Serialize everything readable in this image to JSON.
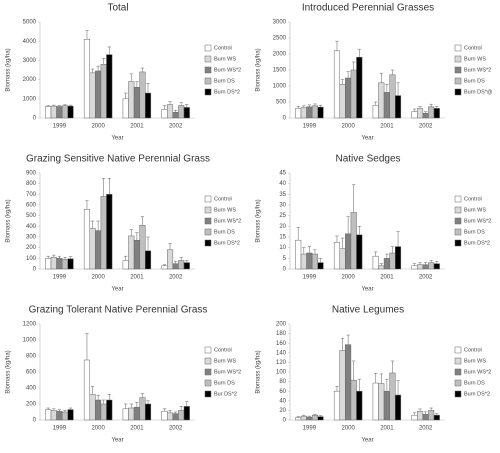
{
  "chart_data": [
    {
      "type": "bar",
      "title": "Total",
      "x_label": "Year",
      "y_label": "Biomass (kg/ha)",
      "categories": [
        "1999",
        "2000",
        "2001",
        "2002"
      ],
      "ylim": [
        0,
        5000
      ],
      "yticks": [
        0,
        1000,
        2000,
        3000,
        4000,
        5000
      ],
      "series": [
        {
          "name": "Control",
          "color": "#ffffff",
          "values": [
            600,
            4100,
            1000,
            450
          ],
          "errors": [
            50,
            450,
            300,
            200
          ]
        },
        {
          "name": "Burn WS",
          "color": "#d9d9d9",
          "values": [
            620,
            2350,
            1900,
            700
          ],
          "errors": [
            50,
            200,
            400,
            150
          ]
        },
        {
          "name": "Burn WS*2",
          "color": "#808080",
          "values": [
            600,
            2450,
            1600,
            300
          ],
          "errors": [
            50,
            250,
            300,
            100
          ]
        },
        {
          "name": "Burn DS",
          "color": "#bfbfbf",
          "values": [
            640,
            2800,
            2400,
            650
          ],
          "errors": [
            50,
            300,
            200,
            150
          ]
        },
        {
          "name": "Burn DS*2",
          "color": "#000000",
          "values": [
            620,
            3300,
            1300,
            550
          ],
          "errors": [
            50,
            400,
            500,
            150
          ]
        }
      ]
    },
    {
      "type": "bar",
      "title": "Introduced Perennial Grasses",
      "x_label": "Year",
      "y_label": "Biomass (kg/ha)",
      "categories": [
        "1999",
        "2000",
        "2001",
        "2002"
      ],
      "ylim": [
        0,
        3000
      ],
      "yticks": [
        0,
        500,
        1000,
        1500,
        2000,
        2500,
        3000
      ],
      "series": [
        {
          "name": "Control",
          "color": "#ffffff",
          "values": [
            300,
            2100,
            400,
            200
          ],
          "errors": [
            60,
            300,
            100,
            80
          ]
        },
        {
          "name": "Burn WS",
          "color": "#d9d9d9",
          "values": [
            320,
            1050,
            1100,
            300
          ],
          "errors": [
            60,
            150,
            300,
            60
          ]
        },
        {
          "name": "Burn WS*2",
          "color": "#808080",
          "values": [
            350,
            1250,
            800,
            150
          ],
          "errors": [
            60,
            200,
            250,
            50
          ]
        },
        {
          "name": "Burn DS",
          "color": "#bfbfbf",
          "values": [
            380,
            1500,
            1350,
            350
          ],
          "errors": [
            60,
            250,
            150,
            80
          ]
        },
        {
          "name": "Burn DS*@",
          "color": "#000000",
          "values": [
            340,
            1900,
            700,
            300
          ],
          "errors": [
            60,
            250,
            400,
            60
          ]
        }
      ]
    },
    {
      "type": "bar",
      "title": "Grazing Sensitive Native Perennial Grass",
      "x_label": "Year",
      "y_label": "Biomass (kg/ha)",
      "categories": [
        "1999",
        "2000",
        "2001",
        "2002"
      ],
      "ylim": [
        0,
        900
      ],
      "yticks": [
        0,
        100,
        200,
        300,
        400,
        500,
        600,
        700,
        800,
        900
      ],
      "series": [
        {
          "name": "Control",
          "color": "#ffffff",
          "values": [
            100,
            560,
            80,
            30
          ],
          "errors": [
            20,
            80,
            40,
            10
          ]
        },
        {
          "name": "Burn WS",
          "color": "#d9d9d9",
          "values": [
            110,
            380,
            310,
            180
          ],
          "errors": [
            20,
            70,
            60,
            60
          ]
        },
        {
          "name": "Burn WS*2",
          "color": "#808080",
          "values": [
            100,
            360,
            270,
            50
          ],
          "errors": [
            20,
            90,
            70,
            20
          ]
        },
        {
          "name": "Burn DS",
          "color": "#bfbfbf",
          "values": [
            90,
            680,
            410,
            80
          ],
          "errors": [
            20,
            170,
            80,
            30
          ]
        },
        {
          "name": "Burn DS*2",
          "color": "#000000",
          "values": [
            95,
            700,
            170,
            60
          ],
          "errors": [
            20,
            150,
            130,
            20
          ]
        }
      ]
    },
    {
      "type": "bar",
      "title": "Native Sedges",
      "x_label": "Year",
      "y_label": "Biomass (kg/ha)",
      "categories": [
        "1999",
        "2000",
        "2001",
        "2002"
      ],
      "ylim": [
        0,
        45
      ],
      "yticks": [
        0,
        5,
        10,
        15,
        20,
        25,
        30,
        35,
        40,
        45
      ],
      "series": [
        {
          "name": "Control",
          "color": "#ffffff",
          "values": [
            13.5,
            12.5,
            6,
            1.5
          ],
          "errors": [
            6,
            3,
            2,
            1
          ]
        },
        {
          "name": "Burn WS",
          "color": "#d9d9d9",
          "values": [
            7,
            9.5,
            1.5,
            2
          ],
          "errors": [
            3,
            5,
            1,
            1
          ]
        },
        {
          "name": "Burn WS*2",
          "color": "#808080",
          "values": [
            7.5,
            16.5,
            5,
            2
          ],
          "errors": [
            3,
            8,
            2,
            1
          ]
        },
        {
          "name": "Burn DS",
          "color": "#bfbfbf",
          "values": [
            7,
            26.5,
            7.5,
            3
          ],
          "errors": [
            2,
            13,
            3,
            1
          ]
        },
        {
          "name": "Burn DS*2",
          "color": "#000000",
          "values": [
            3,
            16,
            10.5,
            2.5
          ],
          "errors": [
            2,
            4,
            7,
            1
          ]
        }
      ]
    },
    {
      "type": "bar",
      "title": "Grazing Tolerant Native Perennial Grass",
      "x_label": "Year",
      "y_label": "Biomass (kg/ha)",
      "categories": [
        "1999",
        "2000",
        "2001",
        "2002"
      ],
      "ylim": [
        0,
        1200
      ],
      "yticks": [
        0,
        200,
        400,
        600,
        800,
        1000,
        1200
      ],
      "series": [
        {
          "name": "Control",
          "color": "#ffffff",
          "values": [
            130,
            750,
            140,
            110
          ],
          "errors": [
            20,
            330,
            60,
            30
          ]
        },
        {
          "name": "Burn WS",
          "color": "#d9d9d9",
          "values": [
            120,
            320,
            150,
            90
          ],
          "errors": [
            20,
            100,
            50,
            30
          ]
        },
        {
          "name": "Burn WS*2",
          "color": "#808080",
          "values": [
            110,
            250,
            160,
            80
          ],
          "errors": [
            20,
            60,
            60,
            20
          ]
        },
        {
          "name": "Burn DS",
          "color": "#bfbfbf",
          "values": [
            100,
            200,
            280,
            120
          ],
          "errors": [
            20,
            50,
            50,
            50
          ]
        },
        {
          "name": "Bur DS*2",
          "color": "#000000",
          "values": [
            130,
            250,
            200,
            170
          ],
          "errors": [
            20,
            70,
            40,
            60
          ]
        }
      ]
    },
    {
      "type": "bar",
      "title": "Native Legumes",
      "x_label": "Year",
      "y_label": "Biomass (kg/ha)",
      "categories": [
        "1999",
        "2000",
        "2001",
        "2002"
      ],
      "ylim": [
        0,
        200
      ],
      "yticks": [
        0,
        20,
        40,
        60,
        80,
        100,
        120,
        140,
        160,
        180,
        200
      ],
      "series": [
        {
          "name": "Control",
          "color": "#ffffff",
          "values": [
            5,
            60,
            77,
            10
          ],
          "errors": [
            2,
            10,
            20,
            5
          ]
        },
        {
          "name": "Burn WS",
          "color": "#d9d9d9",
          "values": [
            8,
            145,
            76,
            18
          ],
          "errors": [
            2,
            25,
            20,
            5
          ]
        },
        {
          "name": "Burn WS*2",
          "color": "#808080",
          "values": [
            6,
            157,
            60,
            12
          ],
          "errors": [
            2,
            20,
            25,
            5
          ]
        },
        {
          "name": "Burn DS",
          "color": "#bfbfbf",
          "values": [
            10,
            83,
            98,
            20
          ],
          "errors": [
            2,
            40,
            25,
            5
          ]
        },
        {
          "name": "Burn DS*2",
          "color": "#000000",
          "values": [
            7,
            60,
            52,
            10
          ],
          "errors": [
            2,
            25,
            30,
            3
          ]
        }
      ]
    }
  ]
}
